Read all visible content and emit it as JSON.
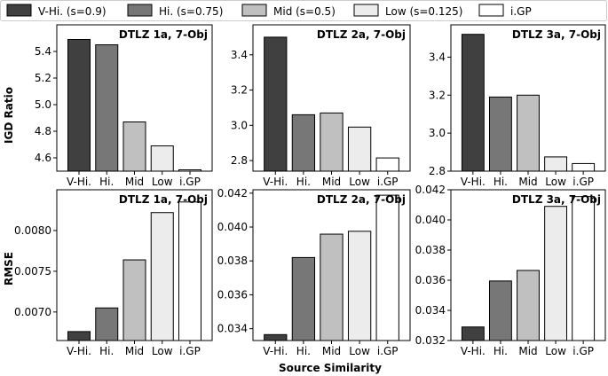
{
  "figure": {
    "xlabel": "Source Similarity",
    "row_ylabels": [
      "IGD Ratio",
      "RMSE"
    ]
  },
  "legend": {
    "placement": "top",
    "entries": [
      {
        "label": "V-Hi. (s=0.9)",
        "color": "#404040"
      },
      {
        "label": "Hi. (s=0.75)",
        "color": "#777777"
      },
      {
        "label": "Mid (s=0.5)",
        "color": "#c0c0c0"
      },
      {
        "label": "Low (s=0.125)",
        "color": "#ececec"
      },
      {
        "label": "i.GP",
        "color": "#ffffff"
      }
    ]
  },
  "chart_data": [
    {
      "type": "bar",
      "title": "DTLZ 1a, 7-Obj",
      "ylabel": "IGD Ratio",
      "categories": [
        "V-Hi.",
        "Hi.",
        "Mid",
        "Low",
        "i.GP"
      ],
      "values": [
        5.49,
        5.45,
        4.87,
        4.69,
        4.51
      ],
      "ylim": [
        4.5,
        5.6
      ],
      "yticks": [
        4.6,
        4.8,
        5.0,
        5.2,
        5.4
      ],
      "ytick_labels": [
        "4.6",
        "4.8",
        "5.0",
        "5.2",
        "5.4"
      ]
    },
    {
      "type": "bar",
      "title": "DTLZ 2a, 7-Obj",
      "ylabel": "",
      "categories": [
        "V-Hi.",
        "Hi.",
        "Mid",
        "Low",
        "i.GP"
      ],
      "values": [
        3.5,
        3.06,
        3.07,
        2.99,
        2.815
      ],
      "ylim": [
        2.74,
        3.57
      ],
      "yticks": [
        2.8,
        3.0,
        3.2,
        3.4
      ],
      "ytick_labels": [
        "2.8",
        "3.0",
        "3.2",
        "3.4"
      ]
    },
    {
      "type": "bar",
      "title": "DTLZ 3a, 7-Obj",
      "ylabel": "",
      "categories": [
        "V-Hi.",
        "Hi.",
        "Mid",
        "Low",
        "i.GP"
      ],
      "values": [
        3.52,
        3.19,
        3.2,
        2.875,
        2.84
      ],
      "ylim": [
        2.8,
        3.57
      ],
      "yticks": [
        2.8,
        3.0,
        3.2,
        3.4
      ],
      "ytick_labels": [
        "2.8",
        "3.0",
        "3.2",
        "3.4"
      ]
    },
    {
      "type": "bar",
      "title": "DTLZ 1a, 7-Obj",
      "ylabel": "RMSE",
      "categories": [
        "V-Hi.",
        "Hi.",
        "Mid",
        "Low",
        "i.GP"
      ],
      "values": [
        0.00676,
        0.00705,
        0.00764,
        0.00822,
        0.00835
      ],
      "ylim": [
        0.00665,
        0.0085
      ],
      "yticks": [
        0.007,
        0.0075,
        0.008
      ],
      "ytick_labels": [
        "0.0070",
        "0.0075",
        "0.0080"
      ]
    },
    {
      "type": "bar",
      "title": "DTLZ 2a, 7-Obj",
      "ylabel": "",
      "categories": [
        "V-Hi.",
        "Hi.",
        "Mid",
        "Low",
        "i.GP"
      ],
      "values": [
        0.03365,
        0.0382,
        0.03958,
        0.03975,
        0.04188
      ],
      "ylim": [
        0.0333,
        0.0422
      ],
      "yticks": [
        0.034,
        0.036,
        0.038,
        0.04,
        0.042
      ],
      "ytick_labels": [
        "0.034",
        "0.036",
        "0.038",
        "0.040",
        "0.042"
      ]
    },
    {
      "type": "bar",
      "title": "DTLZ 3a, 7-Obj",
      "ylabel": "",
      "categories": [
        "V-Hi.",
        "Hi.",
        "Mid",
        "Low",
        "i.GP"
      ],
      "values": [
        0.0329,
        0.03595,
        0.03665,
        0.0409,
        0.04155
      ],
      "ylim": [
        0.032,
        0.042
      ],
      "yticks": [
        0.032,
        0.034,
        0.036,
        0.038,
        0.04,
        0.042
      ],
      "ytick_labels": [
        "0.032",
        "0.034",
        "0.036",
        "0.038",
        "0.040",
        "0.042"
      ]
    }
  ]
}
